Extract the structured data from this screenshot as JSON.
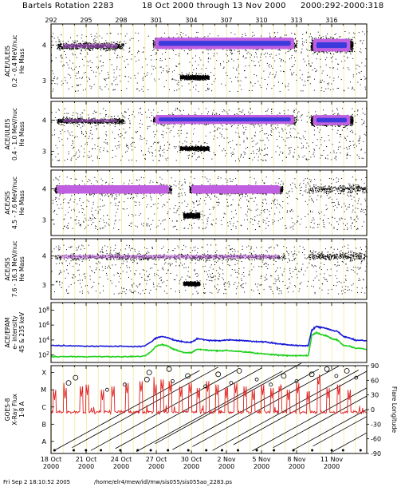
{
  "header": {
    "title_left": "Bartels Rotation 2283",
    "title_mid": "18 Oct 2000 through 13 Nov 2000",
    "title_right": "2000:292-2000:318"
  },
  "footer": {
    "timestamp": "Fri Sep  2 18:10:52 2005",
    "path": "/home/elr4/mew/idl/mw/sis055/sis055ao_2283.ps"
  },
  "colors": {
    "frame": "#000000",
    "gridline": "#f2e68c",
    "dots": "#000000",
    "dense_core": "#3b3bdc",
    "dense_halo": "#c060e0",
    "epam_low": "#1a1ad8",
    "epam_high": "#20d020",
    "goes_flux": "#e02020"
  },
  "chart_data": [
    {
      "type": "scatter",
      "panel": "ACE/ULEIS 0.2-0.4 MeV/nuc",
      "ylabel_lines": [
        "ACE/ULEIS",
        "0.2 - 0.4 MeV/nuc",
        "He Mass"
      ],
      "ytick_labels": [
        "4",
        "3"
      ],
      "yticks": [
        4,
        3
      ],
      "ylim": [
        2.5,
        4.6
      ],
      "xlim": [
        292,
        319
      ],
      "x_top_tick_labels": [
        "292",
        "295",
        "298",
        "301",
        "304",
        "307",
        "310",
        "313",
        "316"
      ],
      "x_top_ticks": [
        292,
        295,
        298,
        301,
        304,
        307,
        310,
        313,
        316
      ],
      "bands": [
        {
          "x0": 292.5,
          "x1": 298.2,
          "y": 3.98,
          "width": 0.12,
          "density": "medium"
        },
        {
          "x0": 300.7,
          "x1": 313.0,
          "y": 4.05,
          "width": 0.18,
          "density": "high"
        },
        {
          "x0": 314.2,
          "x1": 317.8,
          "y": 4.0,
          "width": 0.2,
          "density": "high"
        },
        {
          "x0": 303.0,
          "x1": 305.5,
          "y": 3.1,
          "width": 0.08,
          "density": "medium"
        }
      ],
      "grid": true
    },
    {
      "type": "scatter",
      "panel": "ACE/ULEIS 0.4-1.0 MeV/nuc",
      "ylabel_lines": [
        "ACE/ULEIS",
        "0.4 - 1.0 MeV/nuc",
        "He Mass"
      ],
      "ytick_labels": [
        "4",
        "3"
      ],
      "yticks": [
        4,
        3
      ],
      "ylim": [
        2.5,
        4.6
      ],
      "xlim": [
        292,
        319
      ],
      "bands": [
        {
          "x0": 292.5,
          "x1": 298.2,
          "y": 3.98,
          "width": 0.1,
          "density": "medium"
        },
        {
          "x0": 300.7,
          "x1": 313.0,
          "y": 4.02,
          "width": 0.16,
          "density": "high"
        },
        {
          "x0": 314.2,
          "x1": 317.8,
          "y": 4.0,
          "width": 0.18,
          "density": "high"
        },
        {
          "x0": 303.0,
          "x1": 305.5,
          "y": 3.1,
          "width": 0.08,
          "density": "medium"
        }
      ],
      "grid": true
    },
    {
      "type": "scatter",
      "panel": "ACE/SIS 4.5-7.6 MeV/nuc",
      "ylabel_lines": [
        "ACE/SIS",
        "4.5 - 7.6 MeV/nuc",
        "He Mass"
      ],
      "ytick_labels": [
        "4",
        "3"
      ],
      "yticks": [
        4,
        3
      ],
      "ylim": [
        2.5,
        4.6
      ],
      "xlim": [
        292,
        319
      ],
      "bands": [
        {
          "x0": 292.3,
          "x1": 302.3,
          "y": 3.98,
          "width": 0.15,
          "density": "high"
        },
        {
          "x0": 303.8,
          "x1": 311.8,
          "y": 3.98,
          "width": 0.15,
          "density": "high"
        },
        {
          "x0": 303.3,
          "x1": 304.7,
          "y": 3.15,
          "width": 0.1,
          "density": "medium"
        },
        {
          "x0": 314.0,
          "x1": 319.0,
          "y": 4.0,
          "width": 0.15,
          "density": "low"
        }
      ],
      "grid": true
    },
    {
      "type": "scatter",
      "panel": "ACE/SIS 7.6-16.3 MeV/nuc",
      "ylabel_lines": [
        "ACE/SIS",
        "7.6 - 16.3 MeV/nuc",
        "He Mass"
      ],
      "ytick_labels": [
        "4",
        "3"
      ],
      "yticks": [
        4,
        3
      ],
      "ylim": [
        2.5,
        4.6
      ],
      "xlim": [
        292,
        319
      ],
      "bands": [
        {
          "x0": 292.3,
          "x1": 312.0,
          "y": 3.98,
          "width": 0.12,
          "density": "medium"
        },
        {
          "x0": 303.3,
          "x1": 304.7,
          "y": 3.05,
          "width": 0.08,
          "density": "medium"
        },
        {
          "x0": 314.0,
          "x1": 319.0,
          "y": 4.0,
          "width": 0.15,
          "density": "low"
        }
      ],
      "grid": true
    },
    {
      "type": "line",
      "panel": "ACE/EPAM e- intensity",
      "ylabel_lines": [
        "ACE/EPAM",
        "e- intensity",
        "45 & 235 keV"
      ],
      "yscale": "log",
      "ytick_labels": [
        "10^8",
        "10^6",
        "10^4",
        "10^2"
      ],
      "yticks": [
        100000000,
        1000000,
        10000,
        100
      ],
      "ylim": [
        10,
        1000000000
      ],
      "xlim": [
        292,
        319
      ],
      "series": [
        {
          "color": "#1a1ad8",
          "x": [
            292,
            293,
            294,
            295,
            296,
            297,
            298,
            299,
            300,
            300.6,
            301,
            301.5,
            302,
            302.5,
            303,
            303.5,
            304,
            304.5,
            305,
            305.5,
            306,
            306.5,
            307,
            307.5,
            308,
            308.5,
            309,
            309.5,
            310,
            310.5,
            311,
            311.5,
            312,
            312.5,
            313,
            313.5,
            314,
            314.3,
            314.7,
            315,
            315.5,
            316,
            316.5,
            317,
            317.5,
            318,
            319
          ],
          "y": [
            2000,
            1800,
            1600,
            1500,
            1500,
            1400,
            1400,
            1300,
            1500,
            6000,
            20000,
            30000,
            20000,
            10000,
            7000,
            5000,
            5000,
            15000,
            12000,
            9000,
            9000,
            8000,
            10000,
            10000,
            9000,
            8000,
            7000,
            6000,
            6000,
            5000,
            4000,
            3000,
            2500,
            2000,
            1800,
            1800,
            1800,
            200000,
            700000,
            500000,
            400000,
            200000,
            150000,
            30000,
            20000,
            10000,
            8000
          ]
        },
        {
          "color": "#20d020",
          "x": [
            292,
            293,
            294,
            295,
            296,
            297,
            298,
            299,
            300,
            300.6,
            301,
            301.5,
            302,
            302.5,
            303,
            303.5,
            304,
            304.5,
            305,
            305.5,
            306,
            306.5,
            307,
            307.5,
            308,
            308.5,
            309,
            309.5,
            310,
            310.5,
            311,
            311.5,
            312,
            312.5,
            313,
            313.5,
            314,
            314.3,
            314.7,
            315,
            315.5,
            316,
            316.5,
            317,
            317.5,
            318,
            319
          ],
          "y": [
            60,
            60,
            60,
            60,
            60,
            60,
            60,
            60,
            70,
            300,
            1500,
            2500,
            1500,
            600,
            300,
            200,
            200,
            600,
            500,
            400,
            400,
            350,
            400,
            350,
            300,
            260,
            220,
            180,
            150,
            130,
            110,
            100,
            90,
            80,
            80,
            80,
            80,
            40000,
            100000,
            60000,
            40000,
            15000,
            10000,
            2000,
            1500,
            800,
            600
          ]
        }
      ],
      "grid": true
    },
    {
      "type": "line",
      "panel": "GOES-8 X-Ray Flux",
      "ylabel_lines": [
        "GOES-8",
        "X-Ray Flux",
        "1-8 A"
      ],
      "ytick_labels": [
        "X",
        "M",
        "C",
        "B",
        "A"
      ],
      "yticks": [
        -4,
        -5,
        -6,
        -7,
        -8
      ],
      "ylim": [
        -8.7,
        -3.6
      ],
      "right_ylabel": "Flare Longitude",
      "right_ytick_labels": [
        "90",
        "60",
        "30",
        "0",
        "-30",
        "-60",
        "-90"
      ],
      "right_yticks": [
        90,
        60,
        30,
        0,
        -30,
        -60,
        -90
      ],
      "right_ylim": [
        -90,
        90
      ],
      "xlim": [
        292,
        319
      ],
      "x_tick_labels": [
        "18 Oct\n2000",
        "21 Oct\n2000",
        "24 Oct\n2000",
        "27 Oct\n2000",
        "30 Oct\n2000",
        "2 Nov\n2000",
        "5 Nov\n2000",
        "8 Nov\n2000",
        "11 Nov\n2000"
      ],
      "x_ticks": [
        292,
        295,
        298,
        301,
        304,
        307,
        310,
        313,
        316
      ],
      "flux_baseline": -6.3,
      "flux_peaks": [
        [
          292.3,
          -5.6
        ],
        [
          293.2,
          -5.5
        ],
        [
          294.6,
          -5.4
        ],
        [
          295.1,
          -5.3
        ],
        [
          296.4,
          -5.6
        ],
        [
          297.3,
          -5.4
        ],
        [
          298.5,
          -5.2
        ],
        [
          299.7,
          -5.1
        ],
        [
          300.9,
          -5.3
        ],
        [
          301.5,
          -5.0
        ],
        [
          302.2,
          -5.1
        ],
        [
          303.1,
          -5.4
        ],
        [
          303.9,
          -5.2
        ],
        [
          304.6,
          -5.5
        ],
        [
          305.4,
          -5.1
        ],
        [
          306.2,
          -5.3
        ],
        [
          307.0,
          -5.5
        ],
        [
          307.8,
          -5.2
        ],
        [
          308.6,
          -5.4
        ],
        [
          309.3,
          -5.6
        ],
        [
          310.1,
          -5.3
        ],
        [
          310.9,
          -5.5
        ],
        [
          311.6,
          -5.4
        ],
        [
          312.3,
          -5.6
        ],
        [
          313.1,
          -5.2
        ],
        [
          314.0,
          -5.7
        ],
        [
          314.9,
          -4.9
        ],
        [
          315.7,
          -5.5
        ],
        [
          316.6,
          -5.3
        ],
        [
          317.5,
          -5.6
        ]
      ],
      "flare_tracks": [
        {
          "x0": 292.2,
          "lon0": -85
        },
        {
          "x0": 293.8,
          "lon0": -78
        },
        {
          "x0": 295.4,
          "lon0": -84
        },
        {
          "x0": 297.5,
          "lon0": -80
        },
        {
          "x0": 299.3,
          "lon0": -86
        },
        {
          "x0": 300.9,
          "lon0": -70
        },
        {
          "x0": 302.4,
          "lon0": -82
        },
        {
          "x0": 304.1,
          "lon0": -76
        },
        {
          "x0": 305.8,
          "lon0": -84
        },
        {
          "x0": 307.6,
          "lon0": -72
        },
        {
          "x0": 309.2,
          "lon0": -85
        },
        {
          "x0": 311.0,
          "lon0": -78
        },
        {
          "x0": 312.7,
          "lon0": -83
        },
        {
          "x0": 314.4,
          "lon0": -75
        },
        {
          "x0": 316.1,
          "lon0": -86
        }
      ],
      "flare_events": [
        [
          293.5,
          -4.6,
          1
        ],
        [
          294.1,
          -4.3,
          1
        ],
        [
          296.8,
          -5.0,
          0
        ],
        [
          298.3,
          -4.7,
          0
        ],
        [
          300.2,
          -4.4,
          1
        ],
        [
          300.4,
          -4.0,
          1
        ],
        [
          302.1,
          -3.8,
          1
        ],
        [
          302.4,
          -4.5,
          0
        ],
        [
          303.7,
          -4.2,
          1
        ],
        [
          305.2,
          -4.8,
          0
        ],
        [
          306.3,
          -4.1,
          1
        ],
        [
          307.4,
          -4.6,
          0
        ],
        [
          308.1,
          -3.9,
          1
        ],
        [
          309.6,
          -4.4,
          0
        ],
        [
          310.8,
          -4.7,
          0
        ],
        [
          311.9,
          -4.2,
          1
        ],
        [
          313.0,
          -4.5,
          0
        ],
        [
          314.3,
          -4.1,
          1
        ],
        [
          315.6,
          -3.8,
          1
        ],
        [
          316.4,
          -4.2,
          0
        ],
        [
          317.3,
          -3.9,
          1
        ],
        [
          318.1,
          -4.3,
          0
        ]
      ],
      "grid": true
    }
  ]
}
